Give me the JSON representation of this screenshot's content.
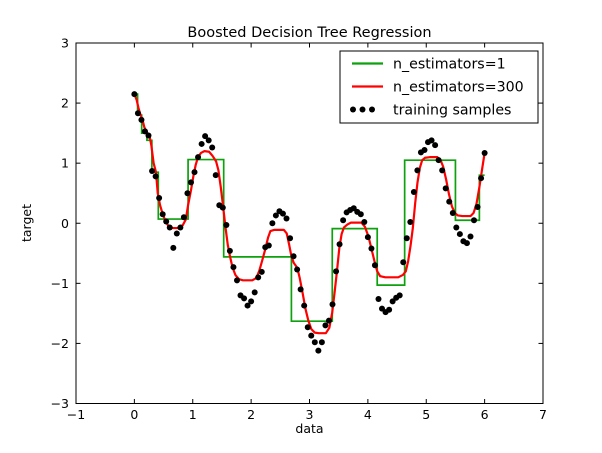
{
  "figure": {
    "background": "#ffffff",
    "frame_color": "#000000"
  },
  "chart_data": {
    "type": "line",
    "title": "Boosted Decision Tree Regression",
    "xlabel": "data",
    "ylabel": "target",
    "xlim": [
      -1,
      7
    ],
    "ylim": [
      -3,
      3
    ],
    "xticks": [
      -1,
      0,
      1,
      2,
      3,
      4,
      5,
      6,
      7
    ],
    "xtick_labels": [
      "−1",
      "0",
      "1",
      "2",
      "3",
      "4",
      "5",
      "6",
      "7"
    ],
    "yticks": [
      -3,
      -2,
      -1,
      0,
      1,
      2,
      3
    ],
    "ytick_labels": [
      "−3",
      "−2",
      "−1",
      "0",
      "1",
      "2",
      "3"
    ],
    "grid": false,
    "legend": {
      "position": "upper right",
      "entries": [
        {
          "label": "n_estimators=1",
          "marker": "line",
          "color": "#0da10d"
        },
        {
          "label": "n_estimators=300",
          "marker": "line",
          "color": "#ff0000"
        },
        {
          "label": "training samples",
          "marker": "dots",
          "color": "#000000"
        }
      ]
    },
    "series": [
      {
        "name": "n_estimators=1",
        "type": "step",
        "color": "#0da10d",
        "line_width": 1.7,
        "steps": [
          [
            0.0,
            0.055,
            2.15
          ],
          [
            0.055,
            0.125,
            1.8
          ],
          [
            0.125,
            0.215,
            1.5
          ],
          [
            0.215,
            0.3,
            1.38
          ],
          [
            0.3,
            0.41,
            0.85
          ],
          [
            0.41,
            0.92,
            0.07
          ],
          [
            0.92,
            1.53,
            1.06
          ],
          [
            1.53,
            2.69,
            -0.56
          ],
          [
            2.69,
            3.39,
            -1.63
          ],
          [
            3.39,
            4.16,
            -0.09
          ],
          [
            4.16,
            4.63,
            -1.03
          ],
          [
            4.63,
            5.5,
            1.05
          ],
          [
            5.5,
            5.91,
            0.05
          ],
          [
            5.91,
            6.0,
            0.8
          ]
        ]
      },
      {
        "name": "n_estimators=300",
        "type": "line",
        "color": "#ff0000",
        "line_width": 2.2,
        "points": [
          [
            0.0,
            2.15
          ],
          [
            0.04,
            2.05
          ],
          [
            0.07,
            1.92
          ],
          [
            0.1,
            1.82
          ],
          [
            0.14,
            1.72
          ],
          [
            0.17,
            1.6
          ],
          [
            0.21,
            1.52
          ],
          [
            0.26,
            1.45
          ],
          [
            0.29,
            1.3
          ],
          [
            0.33,
            1.0
          ],
          [
            0.37,
            0.85
          ],
          [
            0.4,
            0.5
          ],
          [
            0.44,
            0.3
          ],
          [
            0.48,
            0.17
          ],
          [
            0.53,
            0.04
          ],
          [
            0.58,
            -0.04
          ],
          [
            0.65,
            -0.08
          ],
          [
            0.76,
            -0.08
          ],
          [
            0.83,
            -0.03
          ],
          [
            0.88,
            0.06
          ],
          [
            0.92,
            0.3
          ],
          [
            0.97,
            0.55
          ],
          [
            1.01,
            0.78
          ],
          [
            1.05,
            0.97
          ],
          [
            1.09,
            1.1
          ],
          [
            1.14,
            1.17
          ],
          [
            1.2,
            1.2
          ],
          [
            1.28,
            1.19
          ],
          [
            1.34,
            1.12
          ],
          [
            1.4,
            1.03
          ],
          [
            1.44,
            0.88
          ],
          [
            1.48,
            0.6
          ],
          [
            1.52,
            0.28
          ],
          [
            1.56,
            -0.06
          ],
          [
            1.6,
            -0.36
          ],
          [
            1.64,
            -0.56
          ],
          [
            1.68,
            -0.73
          ],
          [
            1.73,
            -0.86
          ],
          [
            1.79,
            -0.93
          ],
          [
            1.86,
            -0.95
          ],
          [
            2.02,
            -0.95
          ],
          [
            2.09,
            -0.91
          ],
          [
            2.14,
            -0.79
          ],
          [
            2.19,
            -0.62
          ],
          [
            2.24,
            -0.44
          ],
          [
            2.29,
            -0.24
          ],
          [
            2.33,
            -0.13
          ],
          [
            2.4,
            -0.11
          ],
          [
            2.56,
            -0.11
          ],
          [
            2.61,
            -0.17
          ],
          [
            2.65,
            -0.35
          ],
          [
            2.69,
            -0.55
          ],
          [
            2.73,
            -0.66
          ],
          [
            2.79,
            -0.74
          ],
          [
            2.83,
            -0.9
          ],
          [
            2.88,
            -1.15
          ],
          [
            2.93,
            -1.42
          ],
          [
            2.98,
            -1.62
          ],
          [
            3.03,
            -1.76
          ],
          [
            3.09,
            -1.82
          ],
          [
            3.16,
            -1.83
          ],
          [
            3.28,
            -1.83
          ],
          [
            3.34,
            -1.74
          ],
          [
            3.39,
            -1.48
          ],
          [
            3.43,
            -1.15
          ],
          [
            3.47,
            -0.8
          ],
          [
            3.51,
            -0.42
          ],
          [
            3.55,
            -0.18
          ],
          [
            3.59,
            -0.07
          ],
          [
            3.65,
            -0.02
          ],
          [
            3.71,
            0.01
          ],
          [
            3.89,
            0.01
          ],
          [
            3.95,
            -0.06
          ],
          [
            4.01,
            -0.22
          ],
          [
            4.06,
            -0.42
          ],
          [
            4.11,
            -0.62
          ],
          [
            4.16,
            -0.8
          ],
          [
            4.21,
            -0.88
          ],
          [
            4.3,
            -0.9
          ],
          [
            4.52,
            -0.9
          ],
          [
            4.6,
            -0.86
          ],
          [
            4.65,
            -0.8
          ],
          [
            4.69,
            -0.63
          ],
          [
            4.73,
            -0.38
          ],
          [
            4.77,
            -0.08
          ],
          [
            4.81,
            0.33
          ],
          [
            4.85,
            0.68
          ],
          [
            4.89,
            0.92
          ],
          [
            4.93,
            1.05
          ],
          [
            4.98,
            1.09
          ],
          [
            5.06,
            1.1
          ],
          [
            5.19,
            1.1
          ],
          [
            5.25,
            1.04
          ],
          [
            5.29,
            0.94
          ],
          [
            5.34,
            0.73
          ],
          [
            5.39,
            0.48
          ],
          [
            5.44,
            0.28
          ],
          [
            5.49,
            0.17
          ],
          [
            5.54,
            0.13
          ],
          [
            5.62,
            0.12
          ],
          [
            5.76,
            0.12
          ],
          [
            5.81,
            0.17
          ],
          [
            5.86,
            0.32
          ],
          [
            5.91,
            0.6
          ],
          [
            5.96,
            0.92
          ],
          [
            6.0,
            1.17
          ]
        ]
      },
      {
        "name": "training samples",
        "type": "scatter",
        "color": "#000000",
        "marker_radius": 3,
        "points": [
          [
            0.0,
            2.15
          ],
          [
            0.061,
            1.83
          ],
          [
            0.121,
            1.72
          ],
          [
            0.182,
            1.53
          ],
          [
            0.242,
            1.46
          ],
          [
            0.303,
            0.87
          ],
          [
            0.364,
            0.78
          ],
          [
            0.424,
            0.42
          ],
          [
            0.485,
            0.15
          ],
          [
            0.545,
            0.03
          ],
          [
            0.606,
            -0.07
          ],
          [
            0.667,
            -0.41
          ],
          [
            0.727,
            -0.17
          ],
          [
            0.788,
            -0.07
          ],
          [
            0.848,
            0.1
          ],
          [
            0.909,
            0.5
          ],
          [
            0.97,
            0.68
          ],
          [
            1.03,
            0.85
          ],
          [
            1.091,
            1.1
          ],
          [
            1.152,
            1.32
          ],
          [
            1.212,
            1.45
          ],
          [
            1.273,
            1.38
          ],
          [
            1.333,
            1.26
          ],
          [
            1.394,
            0.8
          ],
          [
            1.455,
            0.3
          ],
          [
            1.515,
            0.26
          ],
          [
            1.576,
            -0.03
          ],
          [
            1.636,
            -0.46
          ],
          [
            1.697,
            -0.73
          ],
          [
            1.758,
            -0.95
          ],
          [
            1.818,
            -1.2
          ],
          [
            1.879,
            -1.25
          ],
          [
            1.939,
            -1.37
          ],
          [
            2.0,
            -1.3
          ],
          [
            2.061,
            -1.15
          ],
          [
            2.121,
            -0.9
          ],
          [
            2.182,
            -0.81
          ],
          [
            2.242,
            -0.4
          ],
          [
            2.303,
            -0.37
          ],
          [
            2.364,
            0.0
          ],
          [
            2.424,
            0.13
          ],
          [
            2.485,
            0.2
          ],
          [
            2.545,
            0.16
          ],
          [
            2.606,
            0.08
          ],
          [
            2.667,
            -0.25
          ],
          [
            2.727,
            -0.55
          ],
          [
            2.788,
            -0.77
          ],
          [
            2.848,
            -1.1
          ],
          [
            2.909,
            -1.37
          ],
          [
            2.97,
            -1.73
          ],
          [
            3.03,
            -1.87
          ],
          [
            3.091,
            -1.98
          ],
          [
            3.152,
            -2.12
          ],
          [
            3.212,
            -1.98
          ],
          [
            3.273,
            -1.7
          ],
          [
            3.333,
            -1.62
          ],
          [
            3.394,
            -1.35
          ],
          [
            3.455,
            -0.8
          ],
          [
            3.515,
            -0.35
          ],
          [
            3.576,
            0.05
          ],
          [
            3.636,
            0.18
          ],
          [
            3.697,
            0.22
          ],
          [
            3.758,
            0.25
          ],
          [
            3.818,
            0.19
          ],
          [
            3.879,
            0.15
          ],
          [
            3.939,
            0.02
          ],
          [
            4.0,
            -0.23
          ],
          [
            4.061,
            -0.42
          ],
          [
            4.121,
            -0.7
          ],
          [
            4.182,
            -1.26
          ],
          [
            4.242,
            -1.42
          ],
          [
            4.303,
            -1.48
          ],
          [
            4.364,
            -1.44
          ],
          [
            4.424,
            -1.3
          ],
          [
            4.485,
            -1.24
          ],
          [
            4.545,
            -1.2
          ],
          [
            4.606,
            -0.65
          ],
          [
            4.667,
            -0.25
          ],
          [
            4.727,
            0.02
          ],
          [
            4.788,
            0.52
          ],
          [
            4.848,
            0.88
          ],
          [
            4.909,
            1.18
          ],
          [
            4.97,
            1.22
          ],
          [
            5.03,
            1.35
          ],
          [
            5.091,
            1.38
          ],
          [
            5.152,
            1.3
          ],
          [
            5.212,
            1.05
          ],
          [
            5.273,
            0.88
          ],
          [
            5.333,
            0.58
          ],
          [
            5.394,
            0.36
          ],
          [
            5.455,
            0.17
          ],
          [
            5.515,
            -0.07
          ],
          [
            5.576,
            -0.18
          ],
          [
            5.636,
            -0.3
          ],
          [
            5.697,
            -0.33
          ],
          [
            5.758,
            -0.22
          ],
          [
            5.818,
            0.05
          ],
          [
            5.879,
            0.27
          ],
          [
            5.939,
            0.75
          ],
          [
            6.0,
            1.17
          ]
        ]
      }
    ]
  }
}
